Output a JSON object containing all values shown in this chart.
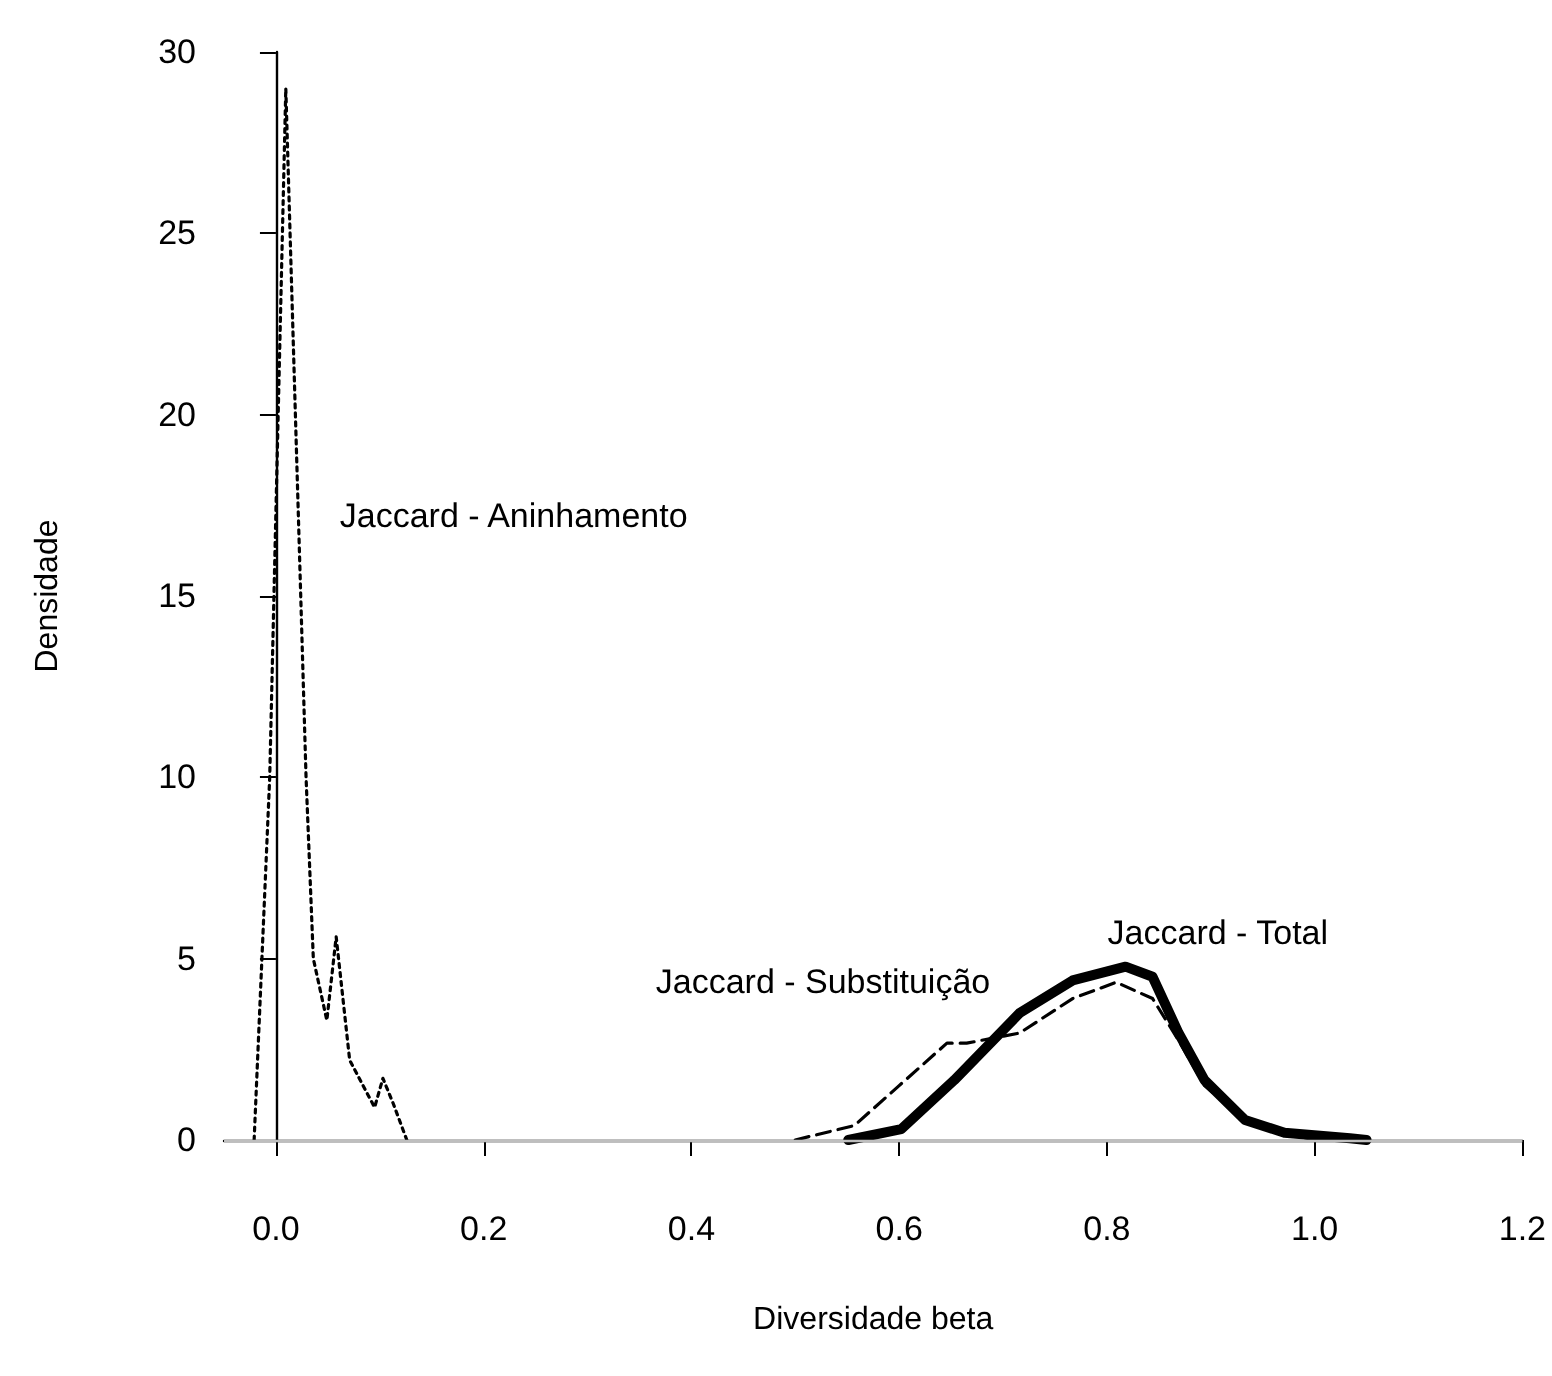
{
  "chart_data": {
    "type": "line",
    "xlabel": "Diversidade beta",
    "ylabel": "Densidade",
    "xlim": [
      -0.05,
      1.2
    ],
    "xticks": [
      {
        "value": 0,
        "label": "0.0"
      },
      0.2,
      0.4,
      0.6,
      0.8,
      {
        "value": 1,
        "label": "1.0"
      },
      1.2
    ],
    "ylim": [
      0,
      30
    ],
    "yticks": [
      0,
      5,
      10,
      15,
      20,
      25,
      30
    ],
    "grid": false,
    "legend": false,
    "marker": "none",
    "ref_lines": [
      {
        "axis": "y",
        "value": 0,
        "color": "#bebebe"
      }
    ],
    "series": [
      {
        "name": "Jaccard - Aninhamento",
        "color": "#000000",
        "line_style": "dotted",
        "x": [
          -0.021,
          -0.006,
          0.0095,
          0.029,
          0.036,
          0.049,
          0.058,
          0.071,
          0.095,
          0.103,
          0.113,
          0.126
        ],
        "values": [
          0,
          10,
          29,
          10,
          5,
          3.3,
          5.6,
          2.2,
          0.9,
          1.7,
          1,
          0
        ]
      },
      {
        "name": "Jaccard - Substituição",
        "color": "#000000",
        "line_style": "dashed",
        "x": [
          0.5,
          0.557,
          0.6,
          0.646,
          0.665,
          0.716,
          0.767,
          0.809,
          0.844,
          0.869,
          0.894,
          0.933,
          0.971,
          1.0
        ],
        "values": [
          0,
          0.4,
          1.5,
          2.67,
          2.67,
          2.95,
          3.9,
          4.35,
          3.9,
          2.75,
          1.5,
          0.55,
          0.2,
          0
        ]
      },
      {
        "name": "Jaccard - Total",
        "color": "#000000",
        "line_style": "solid",
        "x": [
          0.551,
          0.602,
          0.653,
          0.716,
          0.767,
          0.818,
          0.844,
          0.869,
          0.894,
          0.933,
          0.971,
          1.034,
          1.05
        ],
        "values": [
          0,
          0.3,
          1.65,
          3.5,
          4.4,
          4.78,
          4.5,
          2.95,
          1.65,
          0.55,
          0.2,
          0.05,
          0
        ]
      }
    ]
  }
}
